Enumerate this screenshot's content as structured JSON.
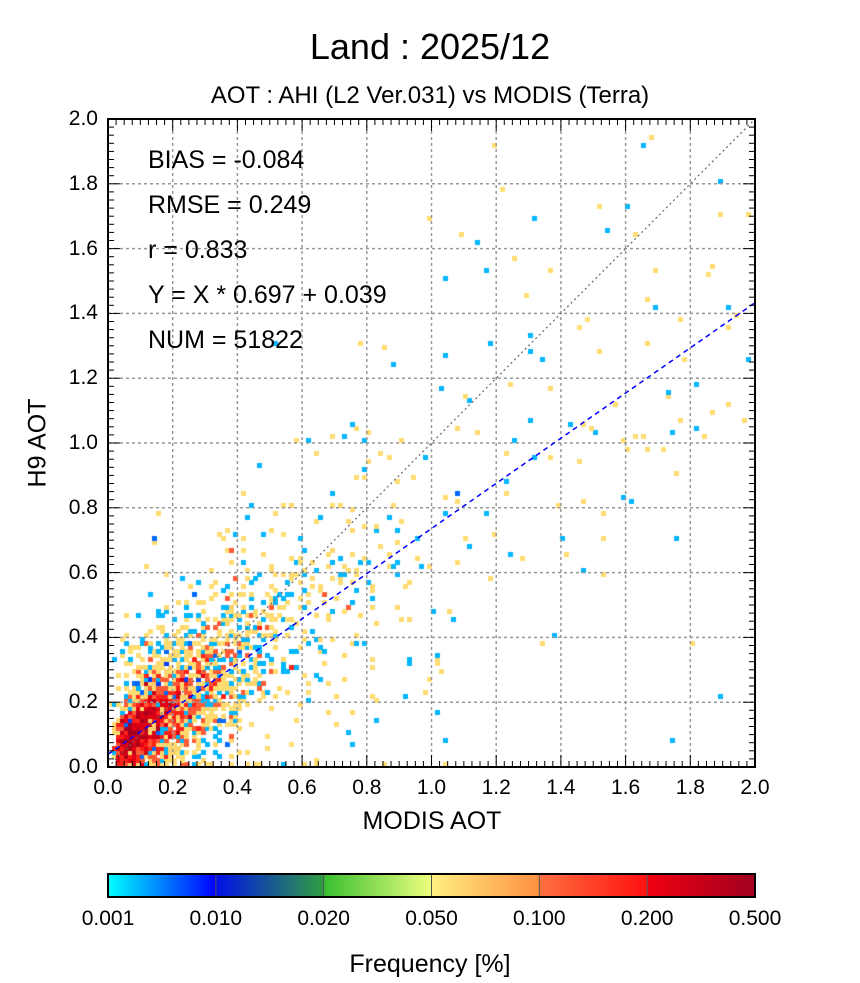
{
  "title": "Land  :  2025/12",
  "subtitle": "AOT : AHI (L2 Ver.031) vs MODIS (Terra)",
  "colors": {
    "regression_line": "#0000ff",
    "one_to_one_line": "#666666",
    "grid": "#999999"
  },
  "chart_data": {
    "type": "heatmap",
    "xlabel": "MODIS AOT",
    "ylabel": "H9 AOT",
    "xlim": [
      0.0,
      2.0
    ],
    "ylim": [
      0.0,
      2.0
    ],
    "grid": true,
    "x_ticks": [
      "0.0",
      "0.2",
      "0.4",
      "0.6",
      "0.8",
      "1.0",
      "1.2",
      "1.4",
      "1.6",
      "1.8",
      "2.0"
    ],
    "y_ticks": [
      "0.0",
      "0.2",
      "0.4",
      "0.6",
      "0.8",
      "1.0",
      "1.2",
      "1.4",
      "1.6",
      "1.8",
      "2.0"
    ],
    "stats": {
      "bias": "BIAS = -0.084",
      "rmse": "RMSE = 0.249",
      "r": "r = 0.833",
      "fit": "Y = X * 0.697 + 0.039",
      "num": "NUM = 51822"
    },
    "regression": {
      "slope": 0.697,
      "intercept": 0.039
    },
    "num_points": 51822,
    "colorbar": {
      "label": "Frequency [%]",
      "ticks": [
        "0.001",
        "0.010",
        "0.020",
        "0.050",
        "0.100",
        "0.200",
        "0.500"
      ],
      "boundaries": [
        0.001,
        0.01,
        0.02,
        0.05,
        0.1,
        0.2,
        0.5
      ],
      "segment_colors": [
        [
          "#00ffff",
          "#0000ff"
        ],
        [
          "#0010e8",
          "#30a040"
        ],
        [
          "#38c030",
          "#f0ff80"
        ],
        [
          "#fff080",
          "#ff9040"
        ],
        [
          "#ff7040",
          "#ff1010"
        ],
        [
          "#f00010",
          "#a00020"
        ]
      ]
    }
  }
}
